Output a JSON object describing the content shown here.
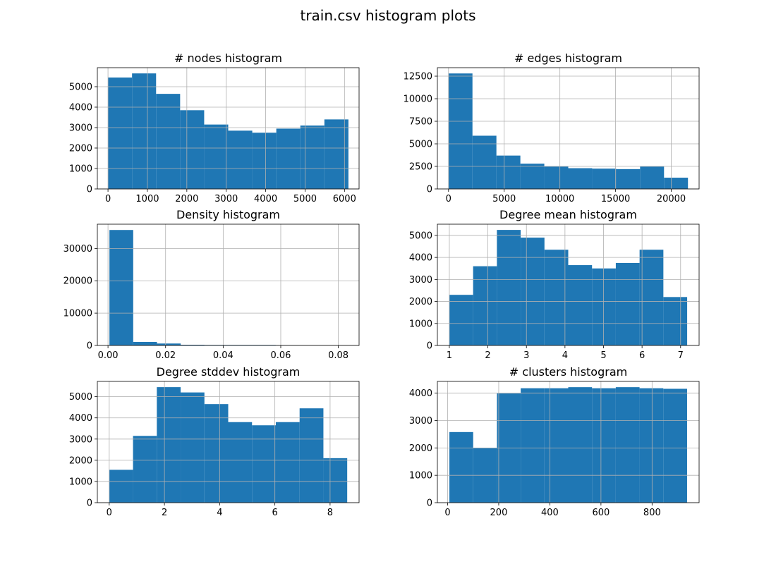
{
  "figure_title": "train.csv histogram plots",
  "colors": {
    "bar": "#1f77b4",
    "grid": "#b0b0b0",
    "axis": "#000000"
  },
  "chart_data": [
    {
      "type": "bar",
      "title": "# nodes histogram",
      "bin_edges": [
        0,
        610,
        1220,
        1830,
        2440,
        3050,
        3660,
        4270,
        4880,
        5490,
        6100
      ],
      "values": [
        5450,
        5650,
        4650,
        3850,
        3150,
        2850,
        2750,
        2950,
        3100,
        3400
      ],
      "xlim": [
        -270,
        6370
      ],
      "ylim": [
        0,
        5930
      ],
      "xticks": [
        0,
        1000,
        2000,
        3000,
        4000,
        5000,
        6000
      ],
      "xtick_labels": [
        "0",
        "1000",
        "2000",
        "3000",
        "4000",
        "5000",
        "6000"
      ],
      "yticks": [
        0,
        1000,
        2000,
        3000,
        4000,
        5000
      ],
      "ytick_labels": [
        "0",
        "1000",
        "2000",
        "3000",
        "4000",
        "5000"
      ],
      "grid": true
    },
    {
      "type": "bar",
      "title": "# edges histogram",
      "bin_edges": [
        0,
        2150,
        4300,
        6450,
        8600,
        10750,
        12900,
        15050,
        17200,
        19350,
        21500
      ],
      "values": [
        12800,
        5900,
        3700,
        2800,
        2500,
        2300,
        2250,
        2200,
        2500,
        1250
      ],
      "xlim": [
        -1000,
        22500
      ],
      "ylim": [
        0,
        13440
      ],
      "xticks": [
        0,
        5000,
        10000,
        15000,
        20000
      ],
      "xtick_labels": [
        "0",
        "5000",
        "10000",
        "15000",
        "20000"
      ],
      "yticks": [
        0,
        2500,
        5000,
        7500,
        10000,
        12500
      ],
      "ytick_labels": [
        "0",
        "2500",
        "5000",
        "7500",
        "10000",
        "12500"
      ],
      "grid": true
    },
    {
      "type": "bar",
      "title": "Density histogram",
      "bin_edges": [
        0.0005,
        0.00875,
        0.017,
        0.02525,
        0.0335,
        0.04175,
        0.05,
        0.05825,
        0.0665,
        0.07475,
        0.083
      ],
      "values": [
        35700,
        1100,
        600,
        200,
        150,
        150,
        150,
        100,
        0,
        0
      ],
      "xlim": [
        -0.0037,
        0.0872
      ],
      "ylim": [
        0,
        37490
      ],
      "xticks": [
        0.0,
        0.02,
        0.04,
        0.06,
        0.08
      ],
      "xtick_labels": [
        "0.00",
        "0.02",
        "0.04",
        "0.06",
        "0.08"
      ],
      "yticks": [
        0,
        10000,
        20000,
        30000
      ],
      "ytick_labels": [
        "0",
        "10000",
        "20000",
        "30000"
      ],
      "grid": true
    },
    {
      "type": "bar",
      "title": "Degree mean histogram",
      "bin_edges": [
        1.0,
        1.617,
        2.234,
        2.851,
        3.468,
        4.085,
        4.702,
        5.319,
        5.936,
        6.553,
        7.17
      ],
      "values": [
        2300,
        3600,
        5250,
        4900,
        4350,
        3650,
        3500,
        3750,
        4350,
        2200
      ],
      "xlim": [
        0.69,
        7.48
      ],
      "ylim": [
        0,
        5510
      ],
      "xticks": [
        1,
        2,
        3,
        4,
        5,
        6,
        7
      ],
      "xtick_labels": [
        "1",
        "2",
        "3",
        "4",
        "5",
        "6",
        "7"
      ],
      "yticks": [
        0,
        1000,
        2000,
        3000,
        4000,
        5000
      ],
      "ytick_labels": [
        "0",
        "1000",
        "2000",
        "3000",
        "4000",
        "5000"
      ],
      "grid": true
    },
    {
      "type": "bar",
      "title": "Degree stddev histogram",
      "bin_edges": [
        0.0,
        0.862,
        1.724,
        2.586,
        3.448,
        4.31,
        5.172,
        6.034,
        6.896,
        7.758,
        8.62
      ],
      "values": [
        1550,
        3150,
        5450,
        5200,
        4650,
        3800,
        3650,
        3800,
        4450,
        2100
      ],
      "xlim": [
        -0.43,
        9.05
      ],
      "ylim": [
        0,
        5720
      ],
      "xticks": [
        0,
        2,
        4,
        6,
        8
      ],
      "xtick_labels": [
        "0",
        "2",
        "4",
        "6",
        "8"
      ],
      "yticks": [
        0,
        1000,
        2000,
        3000,
        4000,
        5000
      ],
      "ytick_labels": [
        "0",
        "1000",
        "2000",
        "3000",
        "4000",
        "5000"
      ],
      "grid": true
    },
    {
      "type": "bar",
      "title": "# clusters histogram",
      "bin_edges": [
        7,
        100,
        193,
        286,
        379,
        472,
        565,
        658,
        751,
        844,
        937
      ],
      "values": [
        2580,
        2000,
        4000,
        4180,
        4180,
        4220,
        4180,
        4220,
        4180,
        4160
      ],
      "xlim": [
        -40,
        984
      ],
      "ylim": [
        0,
        4430
      ],
      "xticks": [
        0,
        200,
        400,
        600,
        800
      ],
      "xtick_labels": [
        "0",
        "200",
        "400",
        "600",
        "800"
      ],
      "yticks": [
        0,
        1000,
        2000,
        3000,
        4000
      ],
      "ytick_labels": [
        "0",
        "1000",
        "2000",
        "3000",
        "4000"
      ],
      "grid": true
    }
  ]
}
